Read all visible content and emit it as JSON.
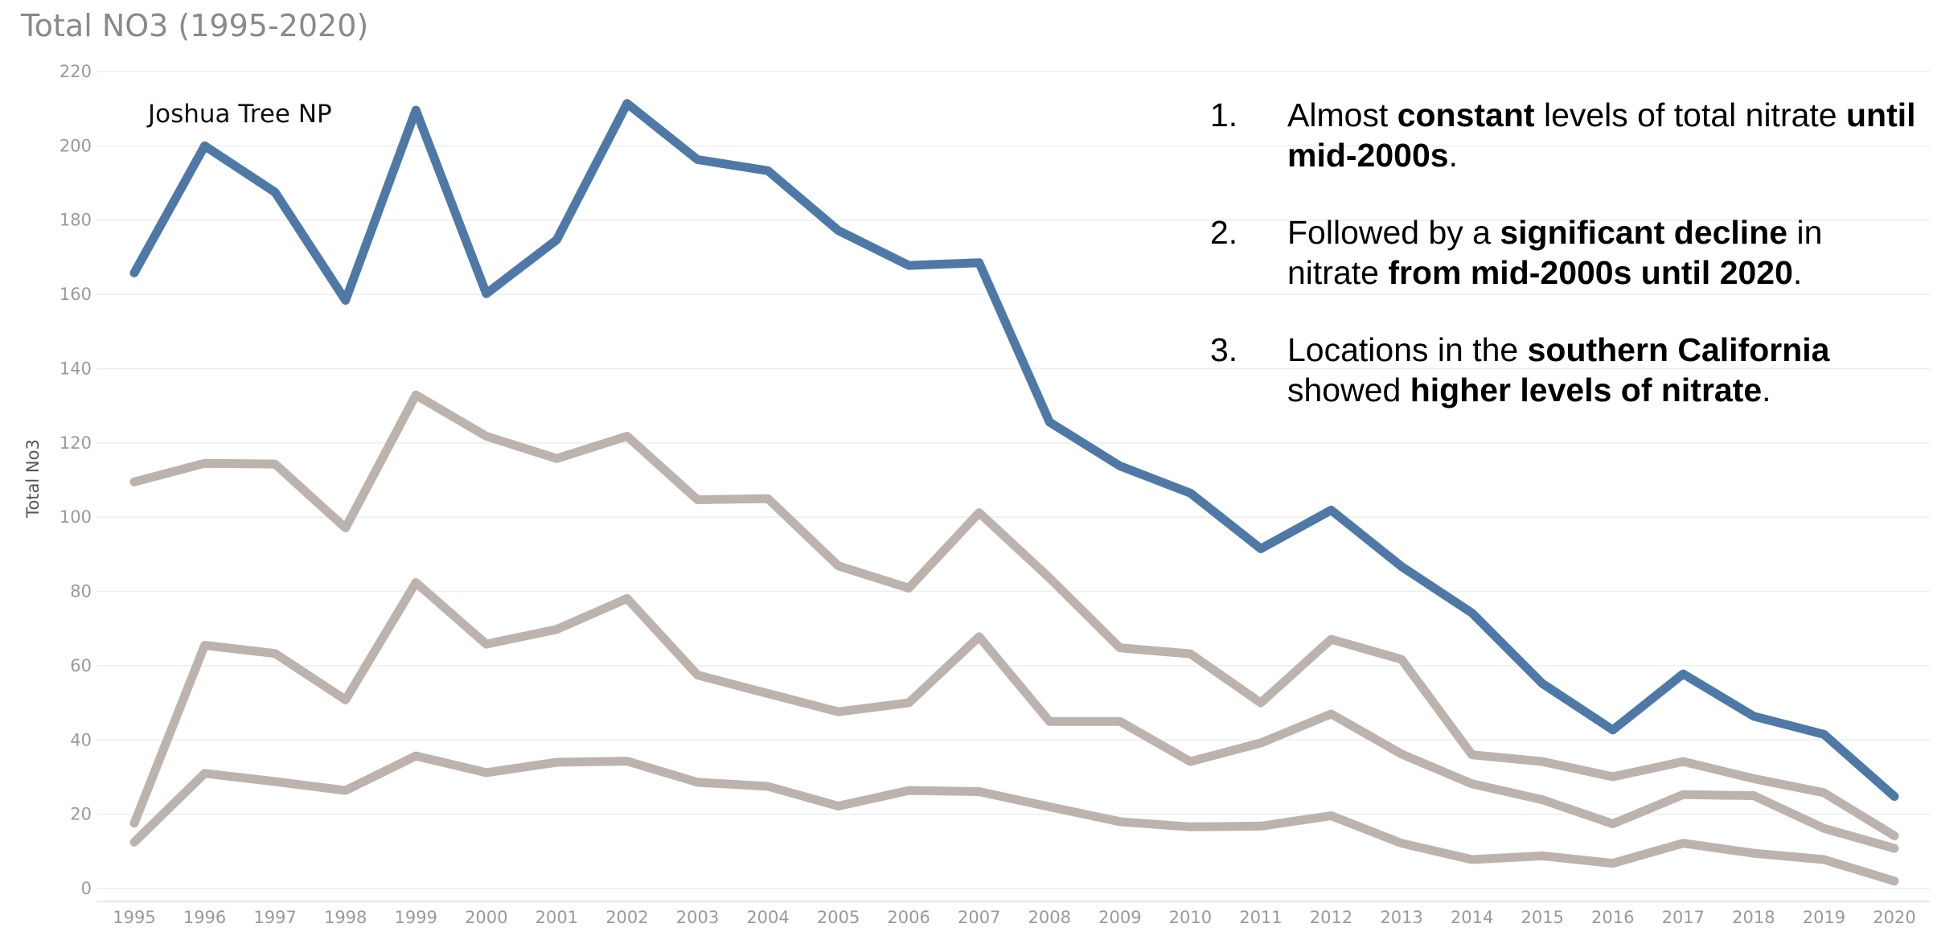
{
  "chart_data": {
    "type": "line",
    "title": "Total NO3 (1995-2020)",
    "xlabel": "",
    "ylabel": "Total No3",
    "ylim": [
      0,
      220
    ],
    "yticks": [
      0,
      20,
      40,
      60,
      80,
      100,
      120,
      140,
      160,
      180,
      200,
      220
    ],
    "grid": "horizontal",
    "x": [
      "1995",
      "1996",
      "1997",
      "1998",
      "1999",
      "2000",
      "2001",
      "2002",
      "2003",
      "2004",
      "2005",
      "2006",
      "2007",
      "2008",
      "2009",
      "2010",
      "2011",
      "2012",
      "2013",
      "2014",
      "2015",
      "2016",
      "2017",
      "2018",
      "2019",
      "2020"
    ],
    "series": [
      {
        "name": "",
        "color": "#bdb3ae",
        "values": [
          12.5,
          31,
          28.8,
          26.4,
          35.7,
          31.2,
          34,
          34.3,
          28.6,
          27.5,
          22.2,
          26.4,
          26.1,
          22,
          18,
          16.6,
          16.8,
          19.6,
          12.2,
          7.8,
          8.8,
          6.8,
          12.2,
          9.5,
          7.8,
          2
        ]
      },
      {
        "name": "",
        "color": "#bdb3ae",
        "values": [
          17.6,
          65.5,
          63.3,
          50.8,
          82.4,
          65.8,
          69.8,
          78.1,
          57.5,
          52.5,
          47.6,
          50,
          67.8,
          45,
          45,
          34.2,
          39.2,
          47,
          36.2,
          28.2,
          23.9,
          17.4,
          25.3,
          25,
          16.2,
          10.8
        ]
      },
      {
        "name": "",
        "color": "#bdb3ae",
        "values": [
          109.5,
          114.5,
          114.3,
          97.1,
          132.9,
          121.8,
          115.8,
          121.8,
          104.7,
          105,
          86.9,
          80.9,
          101.2,
          83.6,
          64.8,
          63.2,
          50,
          67.1,
          61.7,
          36,
          34.2,
          30.1,
          34.2,
          29.6,
          25.8,
          14.2
        ]
      },
      {
        "name": "Joshua Tree NP",
        "color": "#4e79a7",
        "values": [
          165.8,
          200,
          187.5,
          158.4,
          209.6,
          160.2,
          174.7,
          211.4,
          196.3,
          193.3,
          177.2,
          167.8,
          168.5,
          125.6,
          113.8,
          106.5,
          91.5,
          101.9,
          86.7,
          74.2,
          55.2,
          42.7,
          57.8,
          46.4,
          41.5,
          24.8
        ]
      }
    ],
    "annotation": "Joshua Tree NP"
  },
  "notes": [
    {
      "num": "1.",
      "parts": [
        {
          "t": "Almost ",
          "b": false
        },
        {
          "t": "constant",
          "b": true
        },
        {
          "t": " levels of total nitrate ",
          "b": false
        },
        {
          "t": "until mid-2000s",
          "b": true
        },
        {
          "t": ".",
          "b": false
        }
      ]
    },
    {
      "num": "2.",
      "parts": [
        {
          "t": "Followed by a ",
          "b": false
        },
        {
          "t": "significant decline",
          "b": true
        },
        {
          "t": " in nitrate ",
          "b": false
        },
        {
          "t": "from mid-2000s until 2020",
          "b": true
        },
        {
          "t": ".",
          "b": false
        }
      ]
    },
    {
      "num": "3.",
      "parts": [
        {
          "t": "Locations in the ",
          "b": false
        },
        {
          "t": "southern California",
          "b": true
        },
        {
          "t": " showed ",
          "b": false
        },
        {
          "t": "higher levels of nitrate",
          "b": true
        },
        {
          "t": ".",
          "b": false
        }
      ]
    }
  ]
}
